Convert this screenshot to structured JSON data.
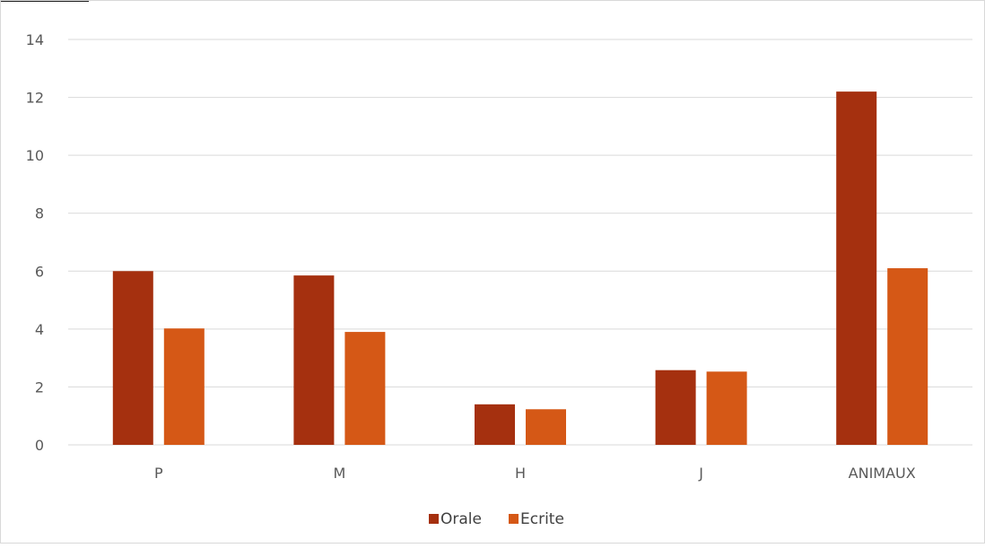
{
  "chart_data": {
    "type": "bar",
    "categories": [
      "P",
      "M",
      "H",
      "J",
      "ANIMAUX"
    ],
    "series": [
      {
        "name": "Orale",
        "color": "#A5300F",
        "values": [
          6.0,
          5.85,
          1.4,
          2.58,
          12.2
        ]
      },
      {
        "name": "Ecrite",
        "color": "#D55816",
        "values": [
          4.02,
          3.9,
          1.23,
          2.53,
          6.1
        ]
      }
    ],
    "ylim": [
      0,
      14
    ],
    "yticks": [
      0,
      2,
      4,
      6,
      8,
      10,
      12,
      14
    ],
    "grid": true,
    "legend": "bottom"
  }
}
